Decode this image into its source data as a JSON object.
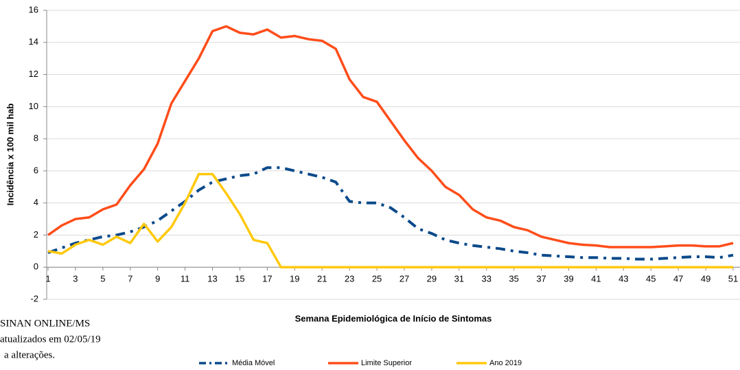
{
  "chart_data": {
    "type": "line",
    "x_label": "Semana Epidemiológica de Início de Sintomas",
    "y_label": "Incidência x 100 mil hab",
    "notes": [
      "SINAN ONLINE/MS",
      "atualizados  em 02/05/19",
      "a alterações."
    ],
    "x": [
      1,
      2,
      3,
      4,
      5,
      6,
      7,
      8,
      9,
      10,
      11,
      12,
      13,
      14,
      15,
      16,
      17,
      18,
      19,
      20,
      21,
      22,
      23,
      24,
      25,
      26,
      27,
      28,
      29,
      30,
      31,
      32,
      33,
      34,
      35,
      36,
      37,
      38,
      39,
      40,
      41,
      42,
      43,
      44,
      45,
      46,
      47,
      48,
      49,
      50,
      51
    ],
    "xlim": [
      1,
      51.5
    ],
    "xticks": [
      1,
      3,
      5,
      7,
      9,
      11,
      13,
      15,
      17,
      19,
      21,
      23,
      25,
      27,
      29,
      31,
      33,
      35,
      37,
      39,
      41,
      43,
      45,
      47,
      49,
      51
    ],
    "ylim": [
      -2,
      16
    ],
    "yticks": [
      -2,
      0,
      2,
      4,
      6,
      8,
      10,
      12,
      14,
      16
    ],
    "grid": true,
    "series": [
      {
        "name": "Média Móvel",
        "color": "#0b4a8b",
        "values": [
          0.9,
          1.2,
          1.5,
          1.7,
          1.9,
          2.0,
          2.2,
          2.5,
          2.9,
          3.5,
          4.1,
          4.8,
          5.3,
          5.5,
          5.7,
          5.8,
          6.2,
          6.2,
          6.0,
          5.8,
          5.6,
          5.3,
          4.1,
          4.0,
          4.0,
          3.7,
          3.1,
          2.4,
          2.1,
          1.7,
          1.5,
          1.35,
          1.25,
          1.15,
          1.0,
          0.9,
          0.75,
          0.7,
          0.65,
          0.6,
          0.6,
          0.55,
          0.55,
          0.5,
          0.5,
          0.55,
          0.6,
          0.65,
          0.65,
          0.6,
          0.75
        ]
      },
      {
        "name": "Limite Superior",
        "color": "#ff4d1a",
        "values": [
          2.0,
          2.6,
          3.0,
          3.1,
          3.6,
          3.9,
          5.1,
          6.1,
          7.7,
          10.2,
          11.6,
          13.0,
          14.7,
          15.0,
          14.6,
          14.5,
          14.8,
          14.3,
          14.4,
          14.2,
          14.1,
          13.6,
          11.7,
          10.6,
          10.3,
          9.1,
          7.9,
          6.8,
          6.0,
          5.0,
          4.5,
          3.6,
          3.1,
          2.9,
          2.5,
          2.3,
          1.9,
          1.7,
          1.5,
          1.4,
          1.35,
          1.25,
          1.25,
          1.25,
          1.25,
          1.3,
          1.35,
          1.35,
          1.3,
          1.3,
          1.5
        ]
      },
      {
        "name": "Ano 2019",
        "color": "#ffc90e",
        "values": [
          1.0,
          0.85,
          1.4,
          1.7,
          1.4,
          1.9,
          1.5,
          2.7,
          1.6,
          2.5,
          4.0,
          5.8,
          5.8,
          4.6,
          3.3,
          1.7,
          1.5,
          0,
          0,
          0,
          0,
          0,
          0,
          0,
          0,
          0,
          0,
          0,
          0,
          0,
          0,
          0,
          0,
          0,
          0,
          0,
          0,
          0,
          0,
          0,
          0,
          0,
          0,
          0,
          0,
          0,
          0,
          0,
          0,
          0,
          0
        ]
      }
    ]
  }
}
